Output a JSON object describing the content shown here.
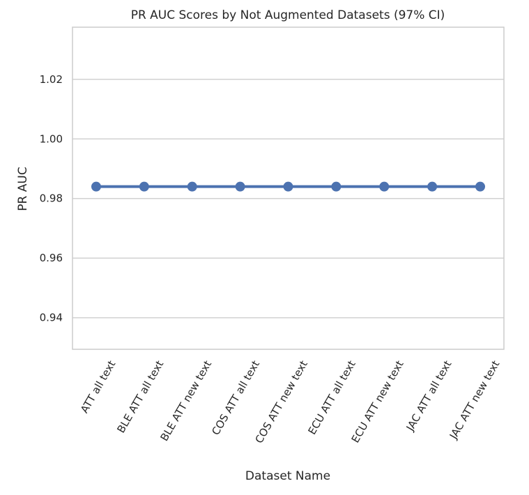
{
  "chart_data": {
    "type": "line",
    "title": "PR AUC Scores by Not Augmented Datasets (97% CI)",
    "xlabel": "Dataset Name",
    "ylabel": "PR AUC",
    "categories": [
      "ATT  all text",
      "BLE ATT  all text",
      "BLE ATT  new text",
      "COS ATT  all text",
      "COS ATT  new text",
      "ECU ATT  all text",
      "ECU ATT  new text",
      "JAC ATT  all text",
      "JAC ATT  new text"
    ],
    "series": [
      {
        "values": [
          0.984,
          0.984,
          0.984,
          0.984,
          0.984,
          0.984,
          0.984,
          0.984,
          0.984
        ]
      }
    ],
    "ylim": [
      0.9294,
      1.0375
    ],
    "yticks": [
      "0.94",
      "0.96",
      "0.98",
      "1.00",
      "1.02"
    ],
    "grid": "horizontal",
    "legend": "none",
    "colors": {
      "series": "#4c72b0",
      "grid": "#d2d2d2",
      "frame": "#cccccc",
      "text": "#262626"
    }
  }
}
